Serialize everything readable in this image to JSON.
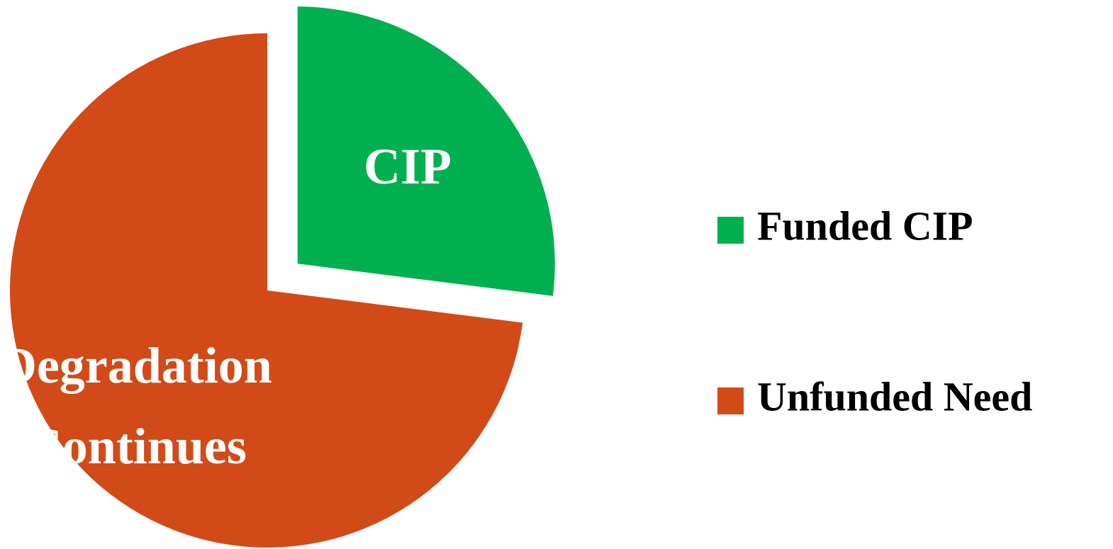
{
  "chart_data": {
    "type": "pie",
    "categories": [
      "Funded CIP",
      "Unfunded Need"
    ],
    "values": [
      27,
      73
    ],
    "colors": [
      "#00b050",
      "#d24a18"
    ],
    "slice_labels": [
      "CIP",
      "Degradation Continues"
    ],
    "exploded": [
      true,
      false
    ],
    "legend": "right"
  }
}
